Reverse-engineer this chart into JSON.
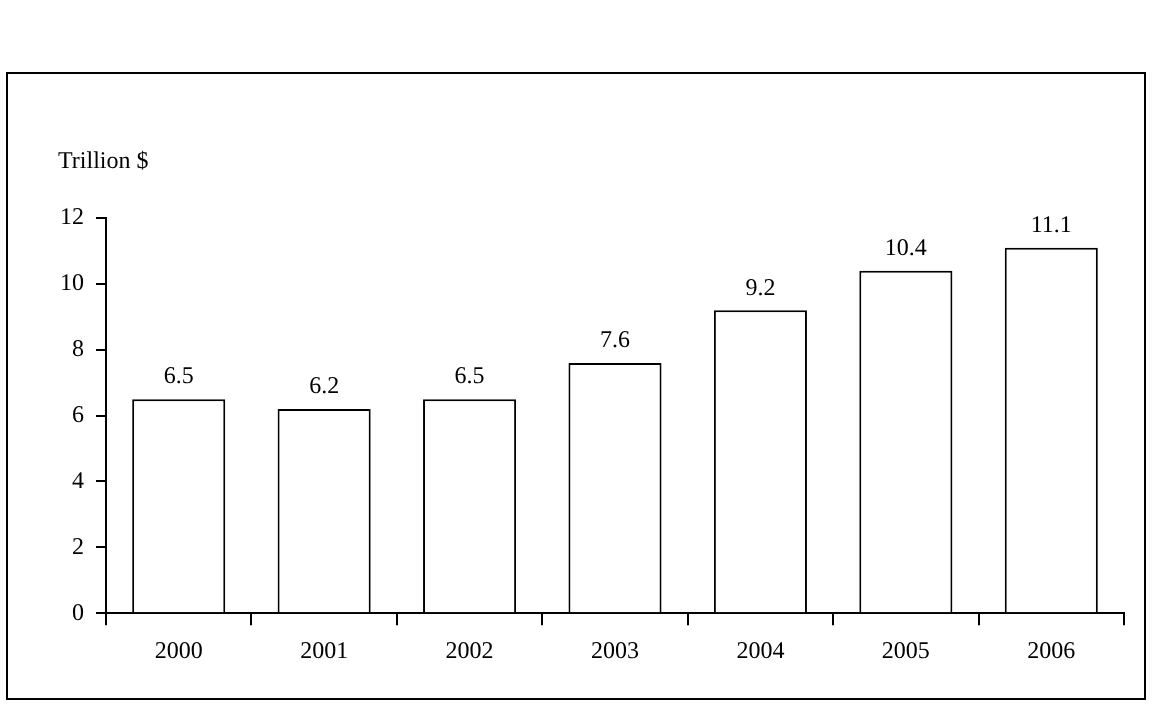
{
  "chart_data": {
    "type": "bar",
    "ylabel": "Trillion $",
    "categories": [
      "2000",
      "2001",
      "2002",
      "2003",
      "2004",
      "2005",
      "2006"
    ],
    "values": [
      6.5,
      6.2,
      6.5,
      7.6,
      9.2,
      10.4,
      11.1
    ],
    "color": "#ffffff",
    "data_labels": true,
    "ylim": [
      0,
      12
    ],
    "yticks": [
      0,
      2,
      4,
      6,
      8,
      10,
      12
    ],
    "grid": false,
    "legend": false
  }
}
